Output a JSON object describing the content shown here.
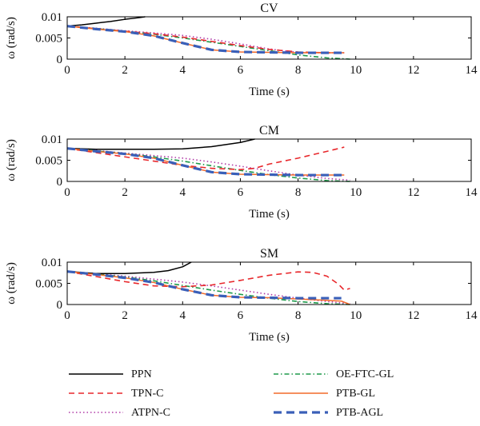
{
  "chart_data": [
    {
      "type": "line",
      "title": "CV",
      "xlabel": "Time (s)",
      "ylabel": "ω (rad/s)",
      "xlim": [
        0,
        14
      ],
      "ylim": [
        0,
        0.01
      ],
      "xticks": [
        "0",
        "2",
        "4",
        "6",
        "8",
        "10",
        "12",
        "14"
      ],
      "yticks": [
        "0",
        "0.005",
        "0.01"
      ],
      "grid": false,
      "series": [
        {
          "name": "PPN",
          "x": [
            0,
            0.5,
            1,
            1.5,
            2,
            2.5,
            2.7
          ],
          "y": [
            0.0078,
            0.0081,
            0.0085,
            0.0089,
            0.0094,
            0.0098,
            0.01
          ]
        },
        {
          "name": "TPN-C",
          "x": [
            0,
            1,
            2,
            3,
            4,
            5,
            6,
            7,
            8,
            9,
            9.6
          ],
          "y": [
            0.0078,
            0.0072,
            0.0066,
            0.006,
            0.0052,
            0.0042,
            0.0032,
            0.0023,
            0.0017,
            0.0015,
            0.0015
          ]
        },
        {
          "name": "ATPN-C",
          "x": [
            0,
            1,
            2,
            3,
            4,
            5,
            6,
            7,
            8,
            9,
            9.6
          ],
          "y": [
            0.0078,
            0.0073,
            0.0067,
            0.0062,
            0.0056,
            0.0047,
            0.0036,
            0.0024,
            0.0016,
            0.0015,
            0.0015
          ]
        },
        {
          "name": "OE-FTC-GL",
          "x": [
            0,
            1,
            2,
            3,
            4,
            5,
            6,
            7,
            8,
            9,
            9.8
          ],
          "y": [
            0.0078,
            0.0072,
            0.0066,
            0.0059,
            0.005,
            0.004,
            0.003,
            0.002,
            0.001,
            0.0003,
            0.0
          ]
        },
        {
          "name": "PTB-GL",
          "x": [
            0,
            1,
            2,
            3,
            4,
            5,
            6,
            7,
            8,
            9,
            9.6
          ],
          "y": [
            0.0078,
            0.0071,
            0.0065,
            0.0055,
            0.0038,
            0.0022,
            0.0017,
            0.0016,
            0.0015,
            0.0015,
            0.0015
          ]
        },
        {
          "name": "PTB-AGL",
          "x": [
            0,
            1,
            2,
            3,
            4,
            5,
            6,
            7,
            8,
            9,
            9.6
          ],
          "y": [
            0.0078,
            0.0071,
            0.0065,
            0.0055,
            0.0038,
            0.0022,
            0.0017,
            0.0016,
            0.0015,
            0.0015,
            0.0015
          ]
        }
      ]
    },
    {
      "type": "line",
      "title": "CM",
      "xlabel": "Time (s)",
      "ylabel": "ω (rad/s)",
      "xlim": [
        0,
        14
      ],
      "ylim": [
        0,
        0.01
      ],
      "xticks": [
        "0",
        "2",
        "4",
        "6",
        "8",
        "10",
        "12",
        "14"
      ],
      "yticks": [
        "0",
        "0.005",
        "0.01"
      ],
      "grid": false,
      "series": [
        {
          "name": "PPN",
          "x": [
            0,
            1,
            2,
            3,
            4,
            5,
            6,
            6.5
          ],
          "y": [
            0.0078,
            0.0076,
            0.0076,
            0.0076,
            0.0077,
            0.0082,
            0.0092,
            0.01
          ]
        },
        {
          "name": "TPN-C",
          "x": [
            0,
            1,
            2,
            3,
            4,
            5,
            6,
            6.5,
            7,
            8,
            9,
            9.6
          ],
          "y": [
            0.0078,
            0.0068,
            0.0058,
            0.0048,
            0.0038,
            0.0031,
            0.0028,
            0.0031,
            0.0041,
            0.0055,
            0.0071,
            0.0081
          ]
        },
        {
          "name": "ATPN-C",
          "x": [
            0,
            1,
            2,
            3,
            4,
            5,
            6,
            7,
            8,
            9,
            9.8
          ],
          "y": [
            0.0078,
            0.0073,
            0.0067,
            0.0061,
            0.0055,
            0.0046,
            0.0036,
            0.0025,
            0.0015,
            0.0007,
            0.0003
          ]
        },
        {
          "name": "OE-FTC-GL",
          "x": [
            0,
            1,
            2,
            3,
            4,
            5,
            6,
            7,
            8,
            9,
            9.8
          ],
          "y": [
            0.0078,
            0.0072,
            0.0066,
            0.0058,
            0.0048,
            0.0037,
            0.0026,
            0.0016,
            0.0008,
            0.0002,
            0.0
          ]
        },
        {
          "name": "PTB-GL",
          "x": [
            0,
            1,
            2,
            3,
            4,
            5,
            6,
            7,
            8,
            9,
            9.6
          ],
          "y": [
            0.0078,
            0.0071,
            0.0065,
            0.0055,
            0.0038,
            0.0022,
            0.0017,
            0.0016,
            0.0015,
            0.0015,
            0.0015
          ]
        },
        {
          "name": "PTB-AGL",
          "x": [
            0,
            1,
            2,
            3,
            4,
            5,
            6,
            7,
            8,
            9,
            9.6
          ],
          "y": [
            0.0078,
            0.0071,
            0.0065,
            0.0055,
            0.0038,
            0.0022,
            0.0017,
            0.0016,
            0.0015,
            0.0015,
            0.0015
          ]
        }
      ]
    },
    {
      "type": "line",
      "title": "SM",
      "xlabel": "Time (s)",
      "ylabel": "ω (rad/s)",
      "xlim": [
        0,
        14
      ],
      "ylim": [
        0,
        0.01
      ],
      "xticks": [
        "0",
        "2",
        "4",
        "6",
        "8",
        "10",
        "12",
        "14"
      ],
      "yticks": [
        "0",
        "0.005",
        "0.01"
      ],
      "grid": false,
      "series": [
        {
          "name": "PPN",
          "x": [
            0,
            1,
            2,
            3,
            3.5,
            4,
            4.3
          ],
          "y": [
            0.0078,
            0.0073,
            0.0073,
            0.0076,
            0.008,
            0.0089,
            0.01
          ]
        },
        {
          "name": "TPN-C",
          "x": [
            0,
            1,
            2,
            3,
            4,
            5,
            6,
            7,
            8,
            8.5,
            9,
            9.4,
            9.6,
            9.8
          ],
          "y": [
            0.0078,
            0.0066,
            0.0054,
            0.0044,
            0.0042,
            0.0046,
            0.0057,
            0.0069,
            0.0077,
            0.0076,
            0.0067,
            0.0048,
            0.0034,
            0.0038
          ]
        },
        {
          "name": "ATPN-C",
          "x": [
            0,
            1,
            2,
            3,
            4,
            5,
            6,
            7,
            8,
            9,
            9.8
          ],
          "y": [
            0.0078,
            0.0073,
            0.0067,
            0.006,
            0.0053,
            0.0044,
            0.0034,
            0.0024,
            0.0015,
            0.0007,
            0.0002
          ]
        },
        {
          "name": "OE-FTC-GL",
          "x": [
            0,
            1,
            2,
            3,
            4,
            5,
            6,
            7,
            8,
            9,
            9.8
          ],
          "y": [
            0.0078,
            0.0072,
            0.0065,
            0.0056,
            0.0045,
            0.0034,
            0.0024,
            0.0015,
            0.0007,
            0.0002,
            0.0
          ]
        },
        {
          "name": "PTB-GL",
          "x": [
            0,
            1,
            2,
            3,
            4,
            5,
            6,
            7,
            8,
            9,
            9.5,
            9.7,
            9.8
          ],
          "y": [
            0.0078,
            0.0071,
            0.0063,
            0.0052,
            0.0036,
            0.0022,
            0.0017,
            0.0016,
            0.0013,
            0.001,
            0.0008,
            0.0003,
            0.0
          ]
        },
        {
          "name": "PTB-AGL",
          "x": [
            0,
            1,
            2,
            3,
            4,
            5,
            6,
            7,
            8,
            9,
            9.5
          ],
          "y": [
            0.0078,
            0.0071,
            0.0063,
            0.0052,
            0.0036,
            0.0022,
            0.0017,
            0.0016,
            0.0015,
            0.0015,
            0.0015
          ]
        }
      ]
    }
  ],
  "legend": {
    "placement": "bottom",
    "items": [
      {
        "name": "PPN",
        "color": "#000000",
        "dash": "solid"
      },
      {
        "name": "TPN-C",
        "color": "#e8272b",
        "dash": "dashed"
      },
      {
        "name": "ATPN-C",
        "color": "#b03aa6",
        "dash": "dotted"
      },
      {
        "name": "OE-FTC-GL",
        "color": "#1e9a4a",
        "dash": "dashdot"
      },
      {
        "name": "PTB-GL",
        "color": "#f26a2a",
        "dash": "solid"
      },
      {
        "name": "PTB-AGL",
        "color": "#3a5fb8",
        "dash": "dashed-thick"
      }
    ]
  }
}
